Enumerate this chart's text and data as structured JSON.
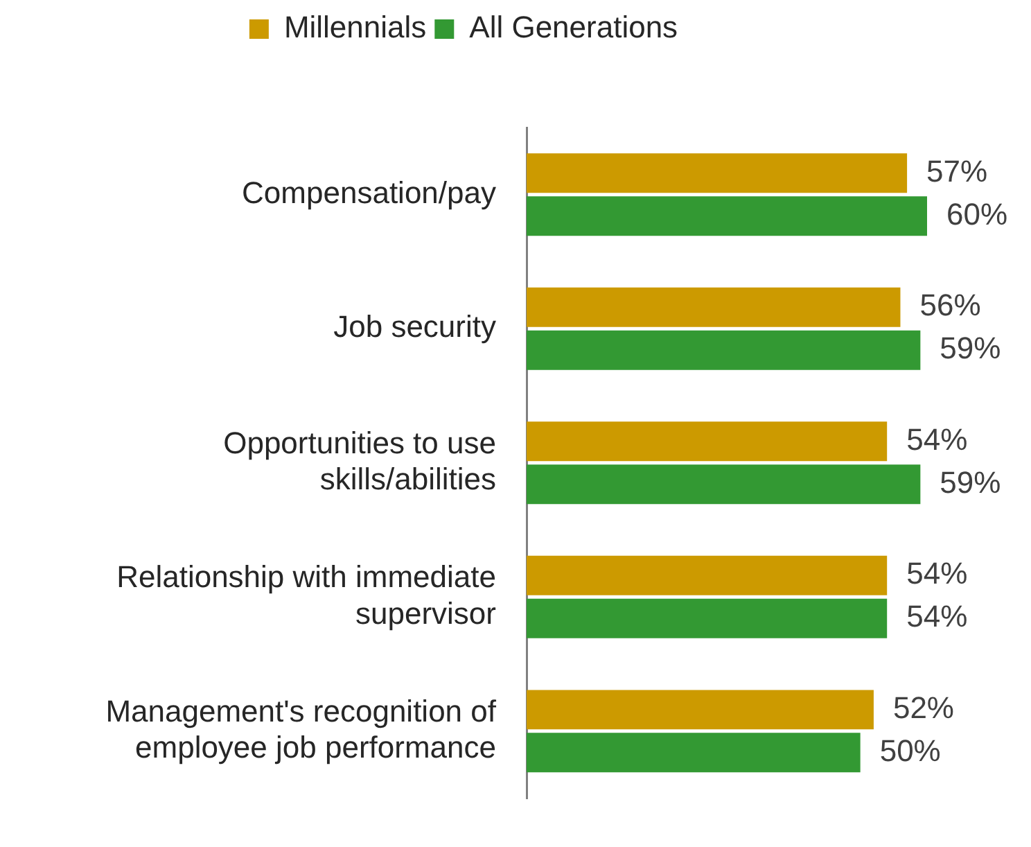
{
  "chart_data": {
    "type": "bar",
    "orientation": "horizontal",
    "categories": [
      "Compensation/pay",
      "Job security",
      "Opportunities to use skills/abilities",
      "Relationship with immediate supervisor",
      "Management's recognition of employee job performance"
    ],
    "series": [
      {
        "name": "Millennials",
        "color": "#cc9a00",
        "values": [
          57,
          56,
          54,
          54,
          52
        ],
        "value_labels": [
          "57%",
          "56%",
          "54%",
          "54%",
          "52%"
        ]
      },
      {
        "name": "All Generations",
        "color": "#339933",
        "values": [
          60,
          59,
          59,
          54,
          50
        ],
        "value_labels": [
          "60%",
          "59%",
          "59%",
          "54%",
          "50%"
        ]
      }
    ],
    "tick_labels": "y",
    "grid": false,
    "legend": "top"
  }
}
